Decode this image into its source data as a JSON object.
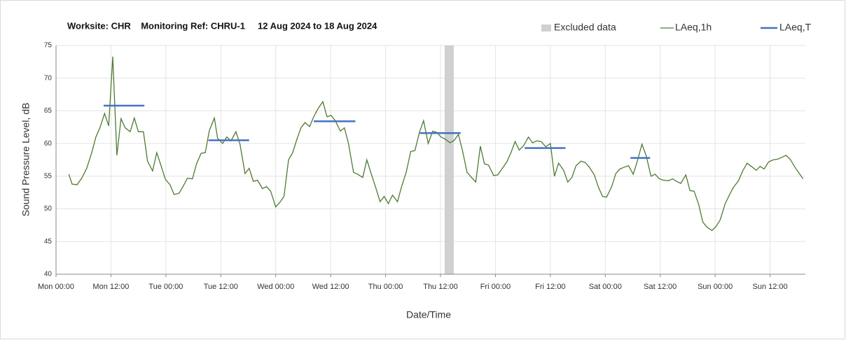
{
  "chart_data": {
    "type": "line",
    "title": "Worksite: CHR    Monitoring Ref: CHRU-1     12 Aug 2024 to 18 Aug 2024",
    "x_label": "Date/Time",
    "y_label": "Sound Pressure Level, dB",
    "xlim": [
      0,
      168
    ],
    "xticks": [
      {
        "value": 0,
        "label": "Mon 00:00"
      },
      {
        "value": 12,
        "label": "Mon 12:00"
      },
      {
        "value": 24,
        "label": "Tue 00:00"
      },
      {
        "value": 36,
        "label": "Tue 12:00"
      },
      {
        "value": 48,
        "label": "Wed 00:00"
      },
      {
        "value": 60,
        "label": "Wed 12:00"
      },
      {
        "value": 72,
        "label": "Thu 00:00"
      },
      {
        "value": 84,
        "label": "Thu 12:00"
      },
      {
        "value": 96,
        "label": "Fri 00:00"
      },
      {
        "value": 108,
        "label": "Fri 12:00"
      },
      {
        "value": 120,
        "label": "Sat 00:00"
      },
      {
        "value": 132,
        "label": "Sat 12:00"
      },
      {
        "value": 144,
        "label": "Sun 00:00"
      },
      {
        "value": 156,
        "label": "Sun 12:00"
      }
    ],
    "ylim": [
      40,
      75
    ],
    "yticks": [
      40,
      45,
      50,
      55,
      60,
      65,
      70,
      75
    ],
    "grid": true,
    "excluded": {
      "name": "Excluded data",
      "color": "#d0d0d0",
      "x": [
        84.9,
        86.9
      ]
    },
    "series": [
      {
        "name": "LAeq,1h",
        "color": "#4f7a32",
        "x": [
          2.8,
          3.5,
          4.6,
          5.7,
          6.7,
          7.8,
          8.7,
          9.6,
          10.6,
          11.5,
          12.4,
          13.3,
          14.2,
          15.1,
          16.2,
          17.1,
          18,
          19.1,
          20,
          21.1,
          22,
          22.9,
          23.9,
          24.9,
          25.8,
          26.9,
          27.8,
          28.7,
          29.8,
          30.7,
          31.7,
          32.6,
          33.5,
          34.6,
          35.3,
          36.4,
          37.3,
          38.2,
          39.3,
          40.2,
          41.3,
          42.2,
          43.1,
          44,
          45.1,
          46,
          46.9,
          48,
          48.9,
          49.8,
          50.8,
          51.7,
          52.6,
          53.5,
          54.4,
          55.4,
          56.3,
          57.3,
          58.3,
          59.2,
          60.1,
          61,
          62.1,
          63,
          63.9,
          65,
          65.9,
          67,
          67.9,
          68.8,
          69.7,
          70.8,
          71.7,
          72.6,
          73.5,
          74.6,
          75.5,
          76.5,
          77.5,
          78.4,
          79.4,
          80.3,
          81.3,
          82.3,
          83.2,
          84.1,
          85,
          86.1,
          87,
          87.9,
          88.8,
          89.8,
          90.8,
          91.7,
          92.7,
          93.6,
          94.5,
          95.6,
          96.5,
          97.4,
          98.5,
          99.4,
          100.3,
          101.2,
          102.1,
          103.2,
          104.1,
          105,
          106,
          107,
          108,
          108.9,
          109.8,
          110.9,
          111.8,
          112.7,
          113.6,
          114.7,
          115.6,
          116.5,
          117.6,
          118.5,
          119.4,
          120.3,
          121.4,
          122.3,
          123.2,
          124.2,
          125.1,
          126.1,
          127,
          128,
          128.9,
          130,
          130.9,
          131.8,
          132.7,
          133.8,
          134.7,
          135.6,
          136.5,
          137.6,
          138.5,
          139.4,
          140.4,
          141.3,
          142.2,
          143.3,
          144.2,
          145.1,
          146.2,
          147.1,
          148,
          149.1,
          150,
          151,
          151.9,
          153,
          153.8,
          154.7,
          155.7,
          156.7,
          157.6,
          158.6,
          159.5,
          160.4,
          161.5,
          162.4,
          163.2
        ],
        "values": [
          55.3,
          53.8,
          53.7,
          54.8,
          56.2,
          58.6,
          61,
          62.4,
          64.6,
          62.7,
          73.3,
          58.2,
          63.8,
          62.4,
          61.8,
          63.9,
          61.8,
          61.8,
          57.3,
          55.8,
          58.6,
          56.7,
          54.5,
          53.7,
          52.2,
          52.4,
          53.5,
          54.7,
          54.6,
          56.9,
          58.5,
          58.6,
          62,
          63.9,
          60.8,
          60,
          61,
          60.4,
          61.8,
          59.9,
          55.4,
          56.2,
          54.2,
          54.4,
          53.1,
          53.4,
          52.7,
          50.3,
          51,
          51.9,
          57.5,
          58.6,
          60.6,
          62.4,
          63.2,
          62.6,
          64.1,
          65.4,
          66.4,
          64.1,
          64.3,
          63.5,
          61.9,
          62.4,
          60,
          55.6,
          55.3,
          54.8,
          57.5,
          55.5,
          53.6,
          51.1,
          51.9,
          50.8,
          52.1,
          51.1,
          53.4,
          55.6,
          58.8,
          58.9,
          61.7,
          63.5,
          60,
          61.9,
          61.7,
          61,
          60.7,
          60.1,
          60.5,
          61.4,
          58.9,
          55.6,
          54.8,
          54.1,
          59.6,
          56.9,
          56.7,
          55.1,
          55.2,
          56.1,
          57.2,
          58.6,
          60.3,
          59,
          59.6,
          61,
          60.1,
          60.4,
          60.3,
          59.5,
          60,
          55,
          57,
          55.9,
          54.1,
          54.8,
          56.6,
          57.3,
          57.1,
          56.4,
          55.2,
          53.3,
          51.9,
          51.8,
          53.4,
          55.4,
          56.1,
          56.4,
          56.6,
          55.3,
          57.3,
          59.9,
          58.2,
          55,
          55.3,
          54.6,
          54.4,
          54.3,
          54.6,
          54.2,
          53.9,
          55.2,
          52.8,
          52.7,
          50.7,
          48,
          47.2,
          46.7,
          47.3,
          48.3,
          50.8,
          52.1,
          53.3,
          54.3,
          55.8,
          57,
          56.5,
          55.9,
          56.5,
          56.1,
          57.2,
          57.5,
          57.6,
          57.9,
          58.2,
          57.6,
          56.3,
          55.4,
          54.6
        ]
      },
      {
        "name": "LAeq,T",
        "color": "#4472c4",
        "x_start": [
          10.4,
          33.3,
          56.3,
          79.5,
          102.4,
          125.5
        ],
        "x_end": [
          19.3,
          42.2,
          65.4,
          88.4,
          111.3,
          129.8
        ],
        "values": [
          65.8,
          60.5,
          63.4,
          61.6,
          59.3,
          57.8
        ]
      }
    ]
  }
}
